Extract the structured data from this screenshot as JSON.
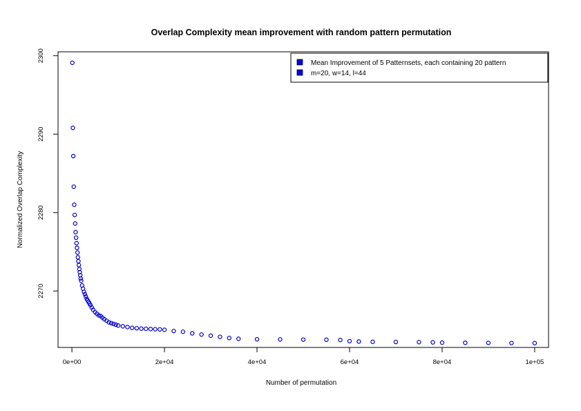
{
  "chart_data": {
    "type": "scatter",
    "title": "Overlap Complexity mean improvement with random pattern permutation",
    "xlabel": "Number of permutation",
    "ylabel": "Normalized Overlap Complexity",
    "xlim": [
      -3000,
      103000
    ],
    "ylim": [
      2262.8,
      2300.5
    ],
    "x_ticks": [
      0,
      20000,
      40000,
      60000,
      80000,
      100000
    ],
    "x_tick_labels": [
      "0e+00",
      "2e+04",
      "4e+04",
      "6e+04",
      "8e+04",
      "1e+05"
    ],
    "y_ticks": [
      2270,
      2280,
      2290,
      2300
    ],
    "y_tick_labels": [
      "2270",
      "2280",
      "2290",
      "2300"
    ],
    "grid": false,
    "legend_position": "top-right",
    "legend": [
      "Mean Improvement of 5 Patternsets, each containing 20 pattern",
      "m=20, w=14, l=44"
    ],
    "colors": {
      "points": "#0000cc",
      "legend_fill": "#0000ee"
    },
    "series": [
      {
        "name": "Mean Improvement of 5 Patternsets, each containing 20 pattern",
        "x": [
          100,
          200,
          300,
          400,
          500,
          600,
          700,
          800,
          900,
          1000,
          1100,
          1200,
          1300,
          1400,
          1500,
          1600,
          1700,
          1800,
          1900,
          2000,
          2200,
          2400,
          2600,
          2800,
          3000,
          3200,
          3400,
          3600,
          3800,
          4000,
          4300,
          4600,
          5000,
          5400,
          5800,
          6200,
          6600,
          7000,
          7500,
          8000,
          8500,
          9000,
          9500,
          10000,
          11000,
          12000,
          13000,
          14000,
          15000,
          16000,
          17000,
          18000,
          19000,
          20000,
          22000,
          24000,
          26000,
          28000,
          30000,
          32000,
          34000,
          36000,
          40000,
          45000,
          50000,
          55000,
          58000,
          60000,
          62000,
          65000,
          70000,
          75000,
          78000,
          80000,
          85000,
          90000,
          95000,
          100000
        ],
        "y": [
          2299.1,
          2290.8,
          2287.2,
          2283.3,
          2281.0,
          2279.7,
          2278.6,
          2277.5,
          2276.8,
          2276.1,
          2275.5,
          2274.9,
          2274.3,
          2273.8,
          2273.3,
          2272.8,
          2272.4,
          2272.0,
          2271.6,
          2271.3,
          2270.7,
          2270.3,
          2269.9,
          2269.6,
          2269.3,
          2269.0,
          2268.8,
          2268.6,
          2268.4,
          2268.2,
          2267.9,
          2267.6,
          2267.3,
          2267.1,
          2266.9,
          2266.8,
          2266.6,
          2266.4,
          2266.2,
          2266.0,
          2265.9,
          2265.8,
          2265.7,
          2265.6,
          2265.5,
          2265.4,
          2265.3,
          2265.25,
          2265.2,
          2265.18,
          2265.15,
          2265.12,
          2265.1,
          2265.05,
          2264.9,
          2264.8,
          2264.6,
          2264.45,
          2264.3,
          2264.15,
          2264.0,
          2263.9,
          2263.85,
          2263.82,
          2263.8,
          2263.78,
          2263.75,
          2263.6,
          2263.55,
          2263.52,
          2263.5,
          2263.48,
          2263.45,
          2263.42,
          2263.4,
          2263.38,
          2263.36,
          2263.35
        ]
      }
    ]
  }
}
